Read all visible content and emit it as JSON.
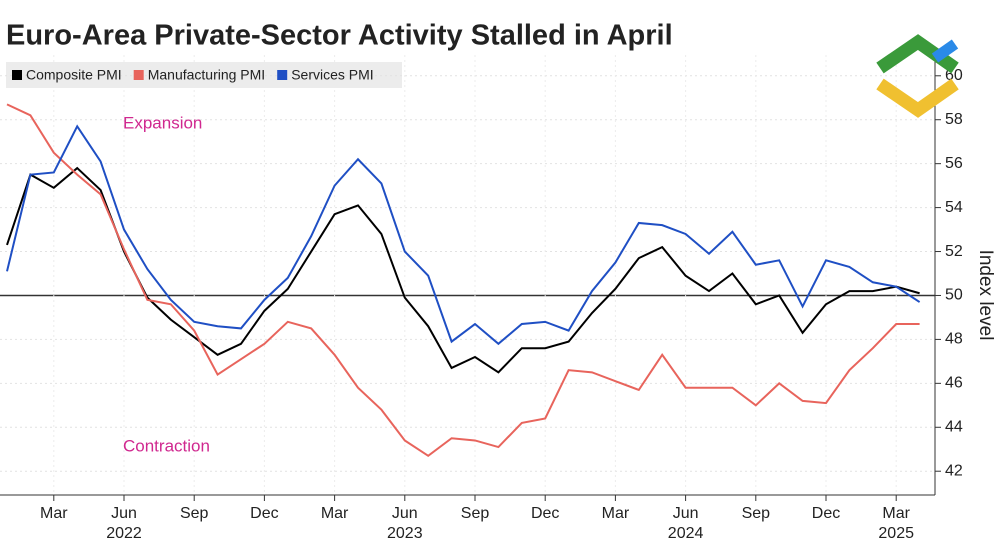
{
  "chart_data": {
    "type": "line",
    "title": "Euro-Area Private-Sector Activity Stalled in April",
    "y_axis_label": "Index level",
    "annotations": [
      "Expansion",
      "Contraction"
    ],
    "annotation_color": "#d0288f",
    "x": [
      "2022-01",
      "2022-02",
      "2022-03",
      "2022-04",
      "2022-05",
      "2022-06",
      "2022-07",
      "2022-08",
      "2022-09",
      "2022-10",
      "2022-11",
      "2022-12",
      "2023-01",
      "2023-02",
      "2023-03",
      "2023-04",
      "2023-05",
      "2023-06",
      "2023-07",
      "2023-08",
      "2023-09",
      "2023-10",
      "2023-11",
      "2023-12",
      "2024-01",
      "2024-02",
      "2024-03",
      "2024-04",
      "2024-05",
      "2024-06",
      "2024-07",
      "2024-08",
      "2024-09",
      "2024-10",
      "2024-11",
      "2024-12",
      "2025-01",
      "2025-02",
      "2025-03",
      "2025-04"
    ],
    "xticks": [
      {
        "value": "2022-03",
        "label": "Mar"
      },
      {
        "value": "2022-06",
        "label": "Jun"
      },
      {
        "value": "2022-09",
        "label": "Sep"
      },
      {
        "value": "2022-12",
        "label": "Dec"
      },
      {
        "value": "2023-03",
        "label": "Mar"
      },
      {
        "value": "2023-06",
        "label": "Jun"
      },
      {
        "value": "2023-09",
        "label": "Sep"
      },
      {
        "value": "2023-12",
        "label": "Dec"
      },
      {
        "value": "2024-03",
        "label": "Mar"
      },
      {
        "value": "2024-06",
        "label": "Jun"
      },
      {
        "value": "2024-09",
        "label": "Sep"
      },
      {
        "value": "2024-12",
        "label": "Dec"
      },
      {
        "value": "2025-03",
        "label": "Mar"
      }
    ],
    "year_labels": [
      {
        "value": "2022-06",
        "label": "2022"
      },
      {
        "value": "2023-06",
        "label": "2023"
      },
      {
        "value": "2024-06",
        "label": "2024"
      },
      {
        "value": "2025-03",
        "label": "2025"
      }
    ],
    "series": [
      {
        "name": "Composite PMI",
        "color": "#000000",
        "values": [
          52.3,
          55.5,
          54.9,
          55.8,
          54.8,
          52.0,
          49.9,
          48.9,
          48.1,
          47.3,
          47.8,
          49.3,
          50.3,
          52.0,
          53.7,
          54.1,
          52.8,
          49.9,
          48.6,
          46.7,
          47.2,
          46.5,
          47.6,
          47.6,
          47.9,
          49.2,
          50.3,
          51.7,
          52.2,
          50.9,
          50.2,
          51.0,
          49.6,
          50.0,
          48.3,
          49.6,
          50.2,
          50.2,
          50.4,
          50.1
        ]
      },
      {
        "name": "Manufacturing PMI",
        "color": "#e8645c",
        "values": [
          58.7,
          58.2,
          56.5,
          55.5,
          54.6,
          52.1,
          49.8,
          49.6,
          48.4,
          46.4,
          47.1,
          47.8,
          48.8,
          48.5,
          47.3,
          45.8,
          44.8,
          43.4,
          42.7,
          43.5,
          43.4,
          43.1,
          44.2,
          44.4,
          46.6,
          46.5,
          46.1,
          45.7,
          47.3,
          45.8,
          45.8,
          45.8,
          45.0,
          46.0,
          45.2,
          45.1,
          46.6,
          47.6,
          48.7,
          48.7
        ]
      },
      {
        "name": "Services PMI",
        "color": "#1f4fc4",
        "values": [
          51.1,
          55.5,
          55.6,
          57.7,
          56.1,
          53.0,
          51.2,
          49.8,
          48.8,
          48.6,
          48.5,
          49.8,
          50.8,
          52.7,
          55.0,
          56.2,
          55.1,
          52.0,
          50.9,
          47.9,
          48.7,
          47.8,
          48.7,
          48.8,
          48.4,
          50.2,
          51.5,
          53.3,
          53.2,
          52.8,
          51.9,
          52.9,
          51.4,
          51.6,
          49.5,
          51.6,
          51.3,
          50.6,
          50.4,
          49.7
        ]
      }
    ],
    "ylim": [
      41.6,
      60.4
    ],
    "yticks": [
      42,
      44,
      46,
      48,
      50,
      52,
      54,
      56,
      58,
      60
    ],
    "reference_line": 50,
    "grid": true
  }
}
